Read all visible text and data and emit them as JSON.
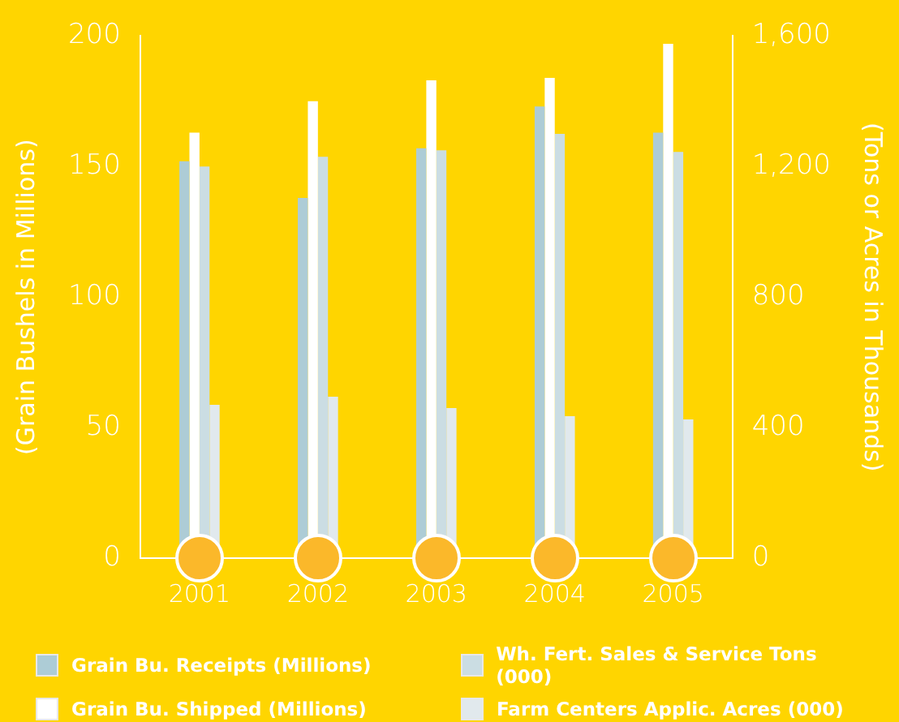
{
  "chart_data": {
    "type": "bar",
    "categories": [
      "2001",
      "2002",
      "2003",
      "2004",
      "2005"
    ],
    "ylabel": "(Grain Bushels in Millions)",
    "y2label": "(Tons or Acres in Thousands)",
    "ylim": [
      0,
      200
    ],
    "yticks": [
      0,
      50,
      100,
      150,
      200
    ],
    "y2lim": [
      0,
      1600
    ],
    "y2ticks": [
      0,
      {
        "value": 400,
        "label": "400"
      },
      {
        "value": 800,
        "label": "800"
      },
      {
        "value": 1200,
        "label": "1,200"
      },
      {
        "value": 1600,
        "label": "1,600"
      }
    ],
    "series": [
      {
        "name": "Grain Bu. Receipts (Millions)",
        "color": "#adccd6",
        "values": [
          152,
          138,
          157,
          173,
          163
        ]
      },
      {
        "name": "Grain Bu. Shipped (Millions)",
        "color": "#ffffff",
        "values": [
          163,
          175,
          183,
          184,
          197
        ]
      },
      {
        "name": "Wh. Fert. Sales & Service Tons (000)",
        "color": "#cbdde3",
        "axis": "y2",
        "values": [
          1200,
          1230,
          1250,
          1300,
          1245
        ]
      },
      {
        "name": "Farm Centers Applic. Acres (000)",
        "color": "#e1e9ed",
        "axis": "y2",
        "values": [
          470,
          495,
          460,
          435,
          425
        ]
      }
    ],
    "legend": "bottom",
    "grid": false
  }
}
